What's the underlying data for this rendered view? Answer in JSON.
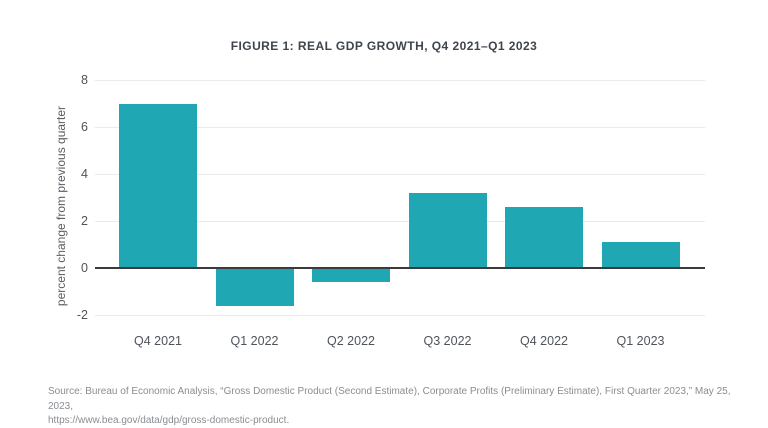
{
  "chart_data": {
    "type": "bar",
    "title": "FIGURE 1: REAL GDP GROWTH, Q4 2021–Q1 2023",
    "categories": [
      "Q4 2021",
      "Q1 2022",
      "Q2 2022",
      "Q3 2022",
      "Q4 2022",
      "Q1 2023"
    ],
    "values": [
      7.0,
      -1.6,
      -0.6,
      3.2,
      2.6,
      1.1
    ],
    "xlabel": "",
    "ylabel": "percent change from previous quarter",
    "ylim": [
      -2,
      8
    ],
    "yticks": [
      8,
      6,
      4,
      2,
      0,
      -2
    ],
    "grid": true,
    "legend": "none",
    "bar_color": "#1FA7B3",
    "zero_line_color": "#3A3A3A",
    "gridline_color": "#EBEBEB"
  },
  "source": {
    "line1": "Source: Bureau of Economic Analysis, “Gross Domestic Product (Second Estimate), Corporate Profits (Preliminary Estimate), First Quarter 2023,” May 25, 2023,",
    "line2": "https://www.bea.gov/data/gdp/gross-domestic-product."
  }
}
